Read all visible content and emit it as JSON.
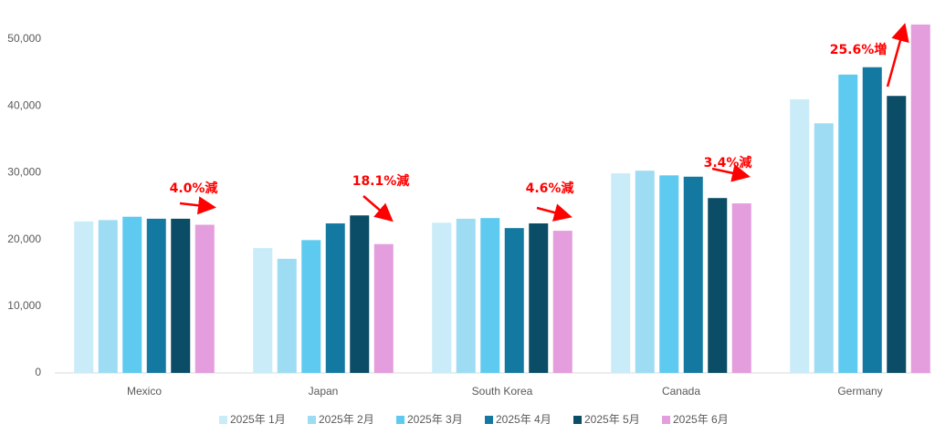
{
  "chart_data": {
    "type": "bar",
    "categories": [
      "Mexico",
      "Japan",
      "South Korea",
      "Canada",
      "Germany"
    ],
    "series": [
      {
        "name": "2025年 1月",
        "color": "#c9ecf8",
        "values": [
          22700,
          18700,
          22500,
          29900,
          41000
        ]
      },
      {
        "name": "2025年 2月",
        "color": "#9ddcf3",
        "values": [
          22900,
          17100,
          23100,
          30300,
          37400
        ]
      },
      {
        "name": "2025年 3月",
        "color": "#5fcaf0",
        "values": [
          23400,
          19900,
          23200,
          29600,
          44700
        ]
      },
      {
        "name": "2025年 4月",
        "color": "#1479a1",
        "values": [
          23100,
          22400,
          21700,
          29400,
          45800
        ]
      },
      {
        "name": "2025年 5月",
        "color": "#0b4c66",
        "values": [
          23100,
          23600,
          22400,
          26200,
          41500
        ]
      },
      {
        "name": "2025年 6月",
        "color": "#e49ddd",
        "values": [
          22200,
          19300,
          21300,
          25400,
          52200
        ]
      }
    ],
    "annotations": [
      "4.0%減",
      "18.1%減",
      "4.6%減",
      "3.4%減",
      "25.6%増"
    ],
    "ylim": [
      0,
      55000
    ],
    "yticks": [
      0,
      {
        "value": 10000,
        "label": "10,000"
      },
      {
        "value": 20000,
        "label": "20,000"
      },
      {
        "value": 30000,
        "label": "30,000"
      },
      {
        "value": 40000,
        "label": "40,000"
      },
      {
        "value": 50000,
        "label": "50,000"
      }
    ],
    "grid": false
  }
}
